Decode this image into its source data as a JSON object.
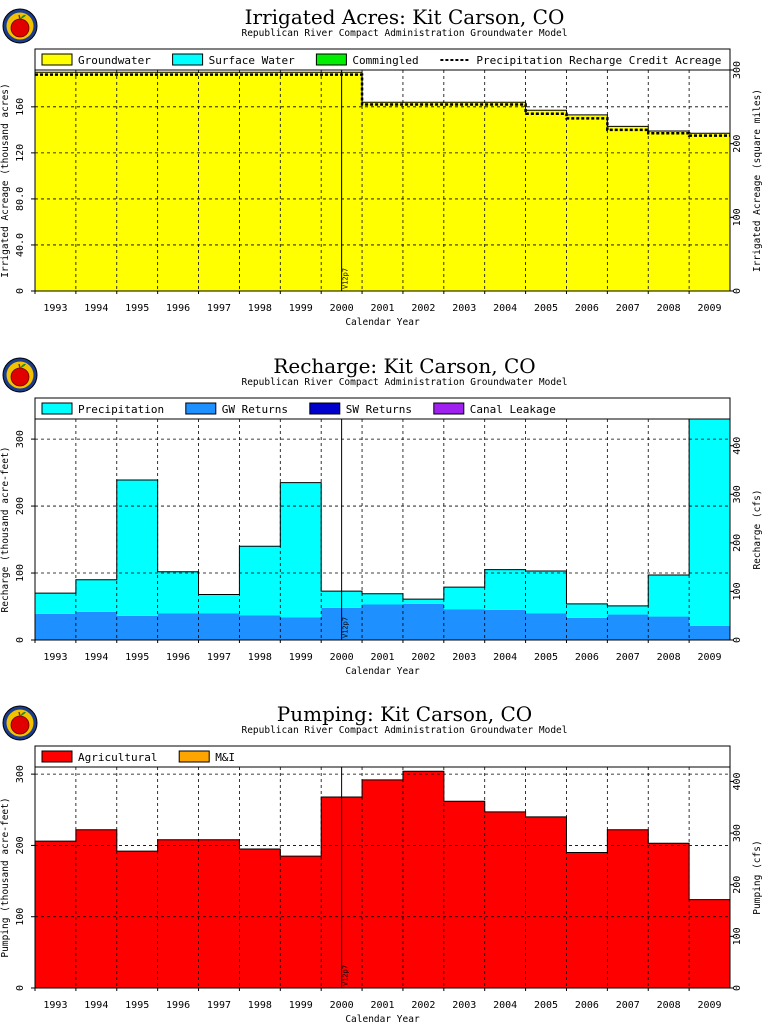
{
  "chart_data": [
    {
      "type": "area",
      "title": "Irrigated Acres: Kit Carson, CO",
      "subtitle": "Republican River Compact Administration Groundwater Model",
      "xlabel": "Calendar Year",
      "ylabel": "Irrigated Acreage (thousand acres)",
      "ylabel_right": "Irrigated Acreage (square miles)",
      "categories": [
        "1993",
        "1994",
        "1995",
        "1996",
        "1997",
        "1998",
        "1999",
        "2000",
        "2001",
        "2002",
        "2003",
        "2004",
        "2005",
        "2006",
        "2007",
        "2008",
        "2009"
      ],
      "ylim": [
        0,
        192
      ],
      "yticks": [
        0,
        40,
        80,
        120,
        160
      ],
      "ytick_labels": [
        "0",
        "40.0",
        "80.0",
        "120",
        "160"
      ],
      "ylim_right": [
        0,
        300
      ],
      "yticks_right": [
        0,
        100,
        200,
        300
      ],
      "marker_label": "V12p7",
      "marker_index": 7.5,
      "series": [
        {
          "name": "Groundwater",
          "color": "#ffff00",
          "values": [
            190,
            190,
            190,
            190,
            190,
            190,
            190,
            190,
            164,
            164,
            164,
            164,
            157,
            153,
            143,
            139,
            137
          ]
        },
        {
          "name": "Surface Water",
          "color": "#00ffff",
          "values": [
            0,
            0,
            0,
            0,
            0,
            0,
            0,
            0,
            0,
            0,
            0,
            0,
            0,
            0,
            0,
            0,
            0
          ]
        },
        {
          "name": "Commingled",
          "color": "#00ee00",
          "values": [
            0,
            0,
            0,
            0,
            0,
            0,
            0,
            0,
            0,
            0,
            0,
            0,
            0,
            0,
            0,
            0,
            0
          ]
        }
      ],
      "line_series": {
        "name": "Precipitation Recharge Credit Acreage",
        "values": [
          188,
          188,
          188,
          188,
          188,
          188,
          188,
          188,
          162,
          162,
          162,
          162,
          154,
          150,
          140,
          137,
          135
        ]
      }
    },
    {
      "type": "area",
      "title": "Recharge: Kit Carson, CO",
      "subtitle": "Republican River Compact Administration Groundwater Model",
      "xlabel": "Calendar Year",
      "ylabel": "Recharge (thousand acre-feet)",
      "ylabel_right": "Recharge (cfs)",
      "categories": [
        "1993",
        "1994",
        "1995",
        "1996",
        "1997",
        "1998",
        "1999",
        "2000",
        "2001",
        "2002",
        "2003",
        "2004",
        "2005",
        "2006",
        "2007",
        "2008",
        "2009"
      ],
      "ylim": [
        0,
        330
      ],
      "yticks": [
        0,
        100,
        200,
        300
      ],
      "ylim_right": [
        0,
        455
      ],
      "yticks_right": [
        0,
        100,
        200,
        300,
        400
      ],
      "marker_label": "V12p7",
      "marker_index": 7.5,
      "series": [
        {
          "name": "GW Returns",
          "color": "#1e90ff",
          "values": [
            39,
            42,
            36,
            40,
            40,
            37,
            34,
            48,
            53,
            54,
            46,
            45,
            40,
            33,
            38,
            35,
            21
          ]
        },
        {
          "name": "Precipitation",
          "color": "#00ffff",
          "values": [
            31,
            48,
            203,
            62,
            28,
            103,
            201,
            25,
            16,
            7,
            33,
            60,
            63,
            21,
            13,
            62,
            309
          ]
        },
        {
          "name": "SW Returns",
          "color": "#0000cd",
          "values": [
            0,
            0,
            0,
            0,
            0,
            0,
            0,
            0,
            0,
            0,
            0,
            0,
            0,
            0,
            0,
            0,
            0
          ]
        },
        {
          "name": "Canal Leakage",
          "color": "#a020f0",
          "values": [
            0,
            0,
            0,
            0,
            0,
            0,
            0,
            0,
            0,
            0,
            0,
            0,
            0,
            0,
            0,
            0,
            0
          ]
        }
      ],
      "legend_order": [
        "Precipitation",
        "GW Returns",
        "SW Returns",
        "Canal Leakage"
      ]
    },
    {
      "type": "area",
      "title": "Pumping: Kit Carson, CO",
      "subtitle": "Republican River Compact Administration Groundwater Model",
      "xlabel": "Calendar Year",
      "ylabel": "Pumping (thousand acre-feet)",
      "ylabel_right": "Pumping (cfs)",
      "categories": [
        "1993",
        "1994",
        "1995",
        "1996",
        "1997",
        "1998",
        "1999",
        "2000",
        "2001",
        "2002",
        "2003",
        "2004",
        "2005",
        "2006",
        "2007",
        "2008",
        "2009"
      ],
      "ylim": [
        0,
        310
      ],
      "yticks": [
        0,
        100,
        200,
        300
      ],
      "ylim_right": [
        0,
        428
      ],
      "yticks_right": [
        0,
        100,
        200,
        300,
        400
      ],
      "marker_label": "V12p7",
      "marker_index": 7.5,
      "series": [
        {
          "name": "Agricultural",
          "color": "#ff0000",
          "values": [
            206,
            222,
            192,
            208,
            208,
            195,
            185,
            268,
            292,
            304,
            262,
            247,
            240,
            190,
            222,
            203,
            124
          ]
        },
        {
          "name": "M&I",
          "color": "#ffa500",
          "values": [
            0,
            0,
            0,
            0,
            0,
            0,
            0,
            0,
            0,
            0,
            0,
            0,
            0,
            0,
            0,
            0,
            0
          ]
        }
      ]
    }
  ]
}
